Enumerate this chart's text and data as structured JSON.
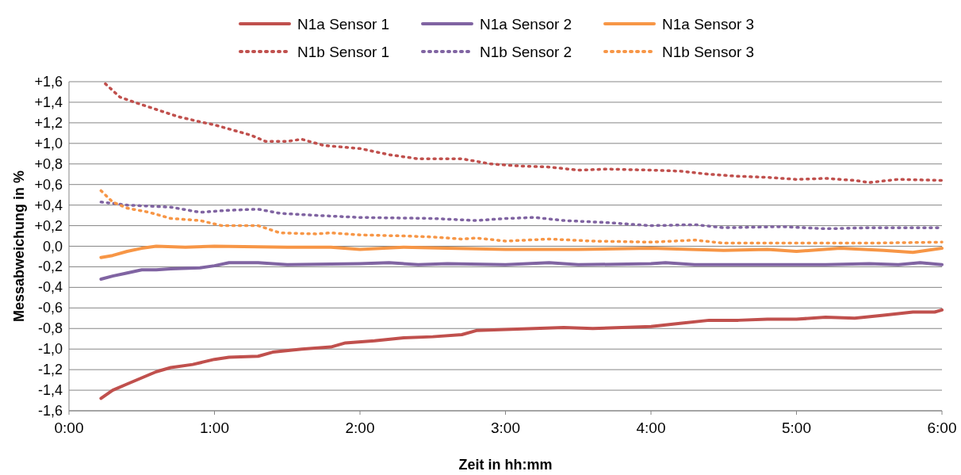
{
  "chart_data": {
    "type": "line",
    "xlabel": "Zeit in hh:mm",
    "ylabel": "Messabweichung in %",
    "legend": "top",
    "grid": "y",
    "xlim": [
      0,
      6
    ],
    "ylim": [
      -1.6,
      1.6
    ],
    "xticks": [
      {
        "value": 0,
        "label": "0:00"
      },
      {
        "value": 1,
        "label": "1:00"
      },
      {
        "value": 2,
        "label": "2:00"
      },
      {
        "value": 3,
        "label": "3:00"
      },
      {
        "value": 4,
        "label": "4:00"
      },
      {
        "value": 5,
        "label": "5:00"
      },
      {
        "value": 6,
        "label": "6:00"
      }
    ],
    "yticks": [
      {
        "value": 1.6,
        "label": "+1,6"
      },
      {
        "value": 1.4,
        "label": "+1,4"
      },
      {
        "value": 1.2,
        "label": "+1,2"
      },
      {
        "value": 1.0,
        "label": "+1,0"
      },
      {
        "value": 0.8,
        "label": "+0,8"
      },
      {
        "value": 0.6,
        "label": "+0,6"
      },
      {
        "value": 0.4,
        "label": "+0,4"
      },
      {
        "value": 0.2,
        "label": "+0,2"
      },
      {
        "value": 0,
        "label": "0,0"
      },
      {
        "value": -0.2,
        "label": "-0,2"
      },
      {
        "value": -0.4,
        "label": "-0,4"
      },
      {
        "value": -0.6,
        "label": "-0,6"
      },
      {
        "value": -0.8,
        "label": "-0,8"
      },
      {
        "value": -1.0,
        "label": "-1,0"
      },
      {
        "value": -1.2,
        "label": "-1,2"
      },
      {
        "value": -1.4,
        "label": "-1,4"
      },
      {
        "value": -1.6,
        "label": "-1,6"
      }
    ],
    "series": [
      {
        "name": "N1a Sensor 1",
        "color": "#c0504d",
        "line_style": "solid",
        "x": [
          0.22,
          0.3,
          0.4,
          0.5,
          0.6,
          0.7,
          0.85,
          1.0,
          1.1,
          1.3,
          1.4,
          1.6,
          1.8,
          1.9,
          2.1,
          2.3,
          2.5,
          2.7,
          2.8,
          3.0,
          3.2,
          3.4,
          3.6,
          3.8,
          4.0,
          4.2,
          4.4,
          4.6,
          4.8,
          5.0,
          5.2,
          5.4,
          5.6,
          5.8,
          5.95,
          6.0
        ],
        "values": [
          -1.48,
          -1.4,
          -1.34,
          -1.28,
          -1.22,
          -1.18,
          -1.15,
          -1.1,
          -1.08,
          -1.07,
          -1.03,
          -1.0,
          -0.98,
          -0.94,
          -0.92,
          -0.89,
          -0.88,
          -0.86,
          -0.82,
          -0.81,
          -0.8,
          -0.79,
          -0.8,
          -0.79,
          -0.78,
          -0.75,
          -0.72,
          -0.72,
          -0.71,
          -0.71,
          -0.69,
          -0.7,
          -0.67,
          -0.64,
          -0.64,
          -0.62
        ]
      },
      {
        "name": "N1a Sensor 2",
        "color": "#8064a2",
        "line_style": "solid",
        "x": [
          0.22,
          0.3,
          0.4,
          0.5,
          0.6,
          0.7,
          0.9,
          1.0,
          1.1,
          1.3,
          1.5,
          2.0,
          2.2,
          2.4,
          2.6,
          3.0,
          3.3,
          3.5,
          4.0,
          4.1,
          4.3,
          4.8,
          5.2,
          5.5,
          5.7,
          5.85,
          6.0
        ],
        "values": [
          -0.32,
          -0.29,
          -0.26,
          -0.23,
          -0.23,
          -0.22,
          -0.21,
          -0.19,
          -0.16,
          -0.16,
          -0.18,
          -0.17,
          -0.16,
          -0.18,
          -0.17,
          -0.18,
          -0.16,
          -0.18,
          -0.17,
          -0.16,
          -0.18,
          -0.18,
          -0.18,
          -0.17,
          -0.18,
          -0.16,
          -0.18
        ]
      },
      {
        "name": "N1a Sensor 3",
        "color": "#f79646",
        "line_style": "solid",
        "x": [
          0.22,
          0.3,
          0.4,
          0.5,
          0.6,
          0.8,
          1.0,
          1.5,
          1.8,
          2.0,
          2.3,
          2.6,
          3.0,
          3.5,
          4.0,
          4.5,
          4.8,
          5.0,
          5.3,
          5.6,
          5.8,
          6.0
        ],
        "values": [
          -0.11,
          -0.09,
          -0.05,
          -0.02,
          0.0,
          -0.01,
          0.0,
          -0.01,
          -0.01,
          -0.03,
          -0.01,
          -0.02,
          -0.03,
          -0.03,
          -0.02,
          -0.04,
          -0.03,
          -0.05,
          -0.02,
          -0.04,
          -0.06,
          -0.02
        ]
      },
      {
        "name": "N1b Sensor 1",
        "color": "#c0504d",
        "line_style": "dotted",
        "x": [
          0.25,
          0.35,
          0.45,
          0.6,
          0.75,
          0.9,
          1.0,
          1.1,
          1.25,
          1.35,
          1.5,
          1.6,
          1.75,
          2.0,
          2.2,
          2.4,
          2.7,
          2.9,
          3.1,
          3.3,
          3.5,
          3.7,
          4.0,
          4.2,
          4.4,
          4.6,
          4.8,
          5.0,
          5.2,
          5.4,
          5.5,
          5.7,
          6.0
        ],
        "values": [
          1.58,
          1.45,
          1.4,
          1.33,
          1.26,
          1.21,
          1.18,
          1.14,
          1.08,
          1.02,
          1.02,
          1.04,
          0.98,
          0.95,
          0.89,
          0.85,
          0.85,
          0.8,
          0.78,
          0.77,
          0.74,
          0.75,
          0.74,
          0.73,
          0.7,
          0.68,
          0.67,
          0.65,
          0.66,
          0.64,
          0.62,
          0.65,
          0.64
        ]
      },
      {
        "name": "N1b Sensor 2",
        "color": "#8064a2",
        "line_style": "dotted",
        "x": [
          0.22,
          0.4,
          0.7,
          0.9,
          1.1,
          1.3,
          1.45,
          1.7,
          2.0,
          2.5,
          2.8,
          3.0,
          3.2,
          3.4,
          3.7,
          4.0,
          4.3,
          4.5,
          4.9,
          5.2,
          5.5,
          6.0
        ],
        "values": [
          0.43,
          0.4,
          0.38,
          0.33,
          0.35,
          0.36,
          0.32,
          0.3,
          0.28,
          0.27,
          0.25,
          0.27,
          0.28,
          0.25,
          0.23,
          0.2,
          0.21,
          0.18,
          0.19,
          0.17,
          0.18,
          0.18
        ]
      },
      {
        "name": "N1b Sensor 3",
        "color": "#f79646",
        "line_style": "dotted",
        "x": [
          0.22,
          0.3,
          0.4,
          0.55,
          0.7,
          0.9,
          1.05,
          1.3,
          1.45,
          1.7,
          1.8,
          2.0,
          2.3,
          2.5,
          2.7,
          2.8,
          3.0,
          3.3,
          3.6,
          4.0,
          4.3,
          4.5,
          5.0,
          5.5,
          6.0
        ],
        "values": [
          0.54,
          0.43,
          0.37,
          0.33,
          0.27,
          0.25,
          0.2,
          0.2,
          0.13,
          0.12,
          0.13,
          0.11,
          0.1,
          0.09,
          0.07,
          0.08,
          0.05,
          0.07,
          0.05,
          0.04,
          0.06,
          0.03,
          0.03,
          0.03,
          0.04
        ]
      }
    ]
  }
}
